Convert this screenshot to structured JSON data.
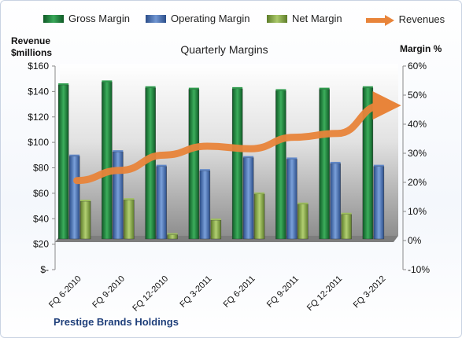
{
  "legend": {
    "gross": "Gross Margin",
    "operating": "Operating Margin",
    "net": "Net Margin",
    "revenues": "Revenues"
  },
  "left_axis_title": [
    "Revenue",
    "$millions"
  ],
  "right_axis_title": "Margin %",
  "footer": "Prestige Brands Holdings",
  "colors": {
    "gross": "#1f8a3e",
    "operating": "#4f78b9",
    "net": "#8aab4a",
    "revenues": "#e8843a"
  },
  "chart_data": {
    "type": "bar",
    "title": "Quarterly Margins",
    "categories": [
      "FQ 6-2010",
      "FQ 9-2010",
      "FQ 12-2010",
      "FQ 3-2011",
      "FQ 6-2011",
      "FQ 9-2011",
      "FQ 12-2011",
      "FQ 3-2012"
    ],
    "y_left": {
      "label": "Revenue $millions",
      "ticks": [
        "$-",
        "$20",
        "$40",
        "$60",
        "$80",
        "$100",
        "$120",
        "$140",
        "$160"
      ],
      "range": [
        0,
        160
      ]
    },
    "y_right": {
      "label": "Margin %",
      "ticks": [
        "-10%",
        "0%",
        "10%",
        "20%",
        "30%",
        "40%",
        "50%",
        "60%"
      ],
      "range": [
        -10,
        60
      ]
    },
    "series": [
      {
        "name": "Gross Margin",
        "axis": "right",
        "values": [
          53.5,
          54.5,
          52.5,
          52,
          52.2,
          51.5,
          52,
          52.5
        ]
      },
      {
        "name": "Operating Margin",
        "axis": "right",
        "values": [
          29,
          30.5,
          25.5,
          24,
          28.5,
          28,
          26.5,
          25.5
        ]
      },
      {
        "name": "Net Margin",
        "axis": "right",
        "values": [
          13.5,
          14,
          2,
          7,
          16,
          12.5,
          9,
          0
        ]
      },
      {
        "name": "Revenues",
        "axis": "left",
        "type": "line",
        "values": [
          70,
          78,
          90,
          97,
          95,
          104,
          107,
          129
        ]
      }
    ],
    "grid": false,
    "legend_position": "top"
  }
}
